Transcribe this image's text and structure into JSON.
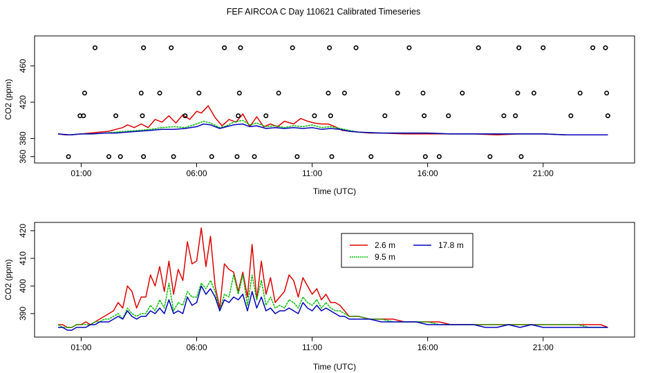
{
  "figure_title": "FEF AIRCOA C  Day 110621  Calibrated Timeseries",
  "colors": {
    "s26": "#dd0000",
    "s95": "#00bb00",
    "s178": "#0000bb",
    "axis": "#000000",
    "points": "#000000"
  },
  "chart_data": [
    {
      "type": "scatter",
      "title": "",
      "xlabel": "Time (UTC)",
      "ylabel": "CO2 (ppm)",
      "xlim": [
        0.0,
        24.0
      ],
      "ylim": [
        356,
        490
      ],
      "xticks": [
        1,
        6,
        11,
        16,
        21
      ],
      "xtick_labels": [
        "01:00",
        "06:00",
        "11:00",
        "16:00",
        "21:00"
      ],
      "yticks": [
        360,
        380,
        420,
        460
      ],
      "ytick_labels": [
        "360",
        "380",
        "420",
        "460"
      ],
      "series": [
        {
          "name": "2.6 m",
          "color_key": "s26",
          "x": [
            0.0,
            0.3,
            0.6,
            1.0,
            1.4,
            1.8,
            2.2,
            2.5,
            2.8,
            3.0,
            3.3,
            3.6,
            3.9,
            4.2,
            4.5,
            4.8,
            5.1,
            5.4,
            5.7,
            6.0,
            6.2,
            6.5,
            6.8,
            7.1,
            7.4,
            7.7,
            8.0,
            8.3,
            8.6,
            8.9,
            9.2,
            9.5,
            9.8,
            10.2,
            10.5,
            10.8,
            11.1,
            11.4,
            11.7,
            12.0,
            12.3,
            12.6,
            13.0,
            13.5,
            14,
            15,
            16,
            17,
            18,
            19,
            20,
            21,
            22,
            23,
            23.8
          ],
          "y": [
            385,
            384,
            384,
            385,
            386,
            387,
            388,
            390,
            392,
            395,
            392,
            396,
            392,
            401,
            398,
            405,
            397,
            406,
            401,
            410,
            408,
            416,
            403,
            394,
            401,
            398,
            407,
            393,
            404,
            393,
            396,
            393,
            399,
            396,
            402,
            399,
            397,
            396,
            396,
            393,
            389,
            388,
            387,
            386,
            386,
            385,
            385,
            385,
            385,
            384,
            385,
            385,
            384,
            384,
            384
          ]
        },
        {
          "name": "9.5 m",
          "color_key": "s95",
          "x": [
            0.0,
            0.5,
            1.0,
            1.5,
            2.0,
            2.5,
            3.0,
            3.5,
            4.0,
            4.5,
            5.0,
            5.5,
            6.0,
            6.3,
            6.6,
            7.0,
            7.3,
            7.6,
            8.0,
            8.3,
            8.6,
            9.0,
            9.4,
            9.8,
            10.2,
            10.6,
            11.0,
            11.4,
            11.8,
            12.2,
            12.6,
            13,
            14,
            15,
            16,
            17,
            18,
            19,
            20,
            21,
            22,
            23,
            23.8
          ],
          "y": [
            385,
            384,
            385,
            385,
            386,
            387,
            388,
            389,
            390,
            392,
            393,
            392,
            396,
            399,
            397,
            392,
            394,
            398,
            400,
            395,
            397,
            393,
            394,
            392,
            394,
            393,
            395,
            392,
            393,
            391,
            389,
            387,
            386,
            386,
            386,
            385,
            385,
            385,
            385,
            385,
            384,
            384,
            384
          ]
        },
        {
          "name": "17.8 m",
          "color_key": "s178",
          "x": [
            0.0,
            0.5,
            1.0,
            1.5,
            2.0,
            2.5,
            3.0,
            3.5,
            4.0,
            4.5,
            5.0,
            5.5,
            6.0,
            6.3,
            6.6,
            7.0,
            7.3,
            7.6,
            8.0,
            8.3,
            8.6,
            9.0,
            9.4,
            9.8,
            10.2,
            10.6,
            11.0,
            11.4,
            11.8,
            12.2,
            12.6,
            13,
            14,
            15,
            16,
            17,
            18,
            19,
            20,
            21,
            22,
            23,
            23.8
          ],
          "y": [
            385,
            384,
            385,
            385,
            386,
            386,
            387,
            388,
            389,
            390,
            390,
            391,
            393,
            396,
            395,
            391,
            393,
            395,
            396,
            393,
            394,
            391,
            392,
            391,
            392,
            391,
            392,
            390,
            391,
            390,
            388,
            387,
            386,
            386,
            386,
            385,
            385,
            385,
            385,
            385,
            384,
            384,
            384
          ]
        },
        {
          "name": "points",
          "color_key": "points",
          "x": [
            0.45,
            0.95,
            1.1,
            1.15,
            1.6,
            2.2,
            2.5,
            2.7,
            3.6,
            3.65,
            3.7,
            3.7,
            4.4,
            4.9,
            5.0,
            5.5,
            6.1,
            6.65,
            7.2,
            7.75,
            7.8,
            7.85,
            7.9,
            8.5,
            9.0,
            9.55,
            10.15,
            10.35,
            11.1,
            11.7,
            11.75,
            11.8,
            11.85,
            12.4,
            12.9,
            13.55,
            14.15,
            14.7,
            15.2,
            15.8,
            15.85,
            15.9,
            16.5,
            16.9,
            17.5,
            18.2,
            18.7,
            19.3,
            19.8,
            19.9,
            19.95,
            20.05,
            20.6,
            21.0,
            22.2,
            22.6,
            23.15,
            23.7,
            23.75,
            23.8
          ],
          "y": [
            360,
            405,
            405,
            430,
            480,
            360,
            405,
            360,
            430,
            405,
            480,
            360,
            430,
            480,
            360,
            405,
            430,
            360,
            480,
            360,
            405,
            430,
            480,
            360,
            405,
            430,
            480,
            360,
            405,
            430,
            480,
            405,
            360,
            430,
            480,
            360,
            405,
            430,
            480,
            430,
            405,
            360,
            360,
            405,
            430,
            480,
            360,
            405,
            405,
            430,
            480,
            360,
            430,
            480,
            405,
            430,
            480,
            480,
            430,
            405
          ]
        }
      ]
    },
    {
      "type": "line",
      "title": "",
      "xlabel": "Time (UTC)",
      "ylabel": "CO2 (ppm)",
      "xlim": [
        0.0,
        24.0
      ],
      "ylim": [
        382.5,
        422.0
      ],
      "xticks": [
        1,
        6,
        11,
        16,
        21
      ],
      "xtick_labels": [
        "01:00",
        "06:00",
        "11:00",
        "16:00",
        "21:00"
      ],
      "yticks": [
        390,
        400,
        410,
        420
      ],
      "ytick_labels": [
        "390",
        "400",
        "410",
        "420"
      ],
      "legend": {
        "position": "top-right",
        "entries": [
          "2.6 m",
          "17.8 m",
          "9.5 m"
        ]
      },
      "series": [
        {
          "name": "2.6 m",
          "color_key": "s26",
          "x": [
            0.0,
            0.2,
            0.4,
            0.6,
            0.8,
            1.0,
            1.2,
            1.4,
            1.6,
            1.8,
            2.0,
            2.2,
            2.4,
            2.6,
            2.8,
            3.0,
            3.2,
            3.4,
            3.6,
            3.8,
            4.0,
            4.2,
            4.4,
            4.6,
            4.8,
            5.0,
            5.2,
            5.4,
            5.6,
            5.8,
            6.0,
            6.2,
            6.4,
            6.6,
            6.8,
            7.0,
            7.2,
            7.4,
            7.6,
            7.8,
            8.0,
            8.2,
            8.4,
            8.6,
            8.8,
            9.0,
            9.2,
            9.4,
            9.6,
            9.8,
            10.0,
            10.2,
            10.4,
            10.6,
            10.8,
            11.0,
            11.2,
            11.4,
            11.6,
            11.8,
            12.0,
            12.2,
            12.4,
            12.6,
            12.8,
            13.0,
            13.5,
            14.0,
            14.5,
            15.0,
            15.5,
            16.0,
            16.5,
            17.0,
            17.5,
            18.0,
            18.5,
            19.0,
            19.5,
            20.0,
            20.5,
            21.0,
            21.5,
            22.0,
            22.5,
            23.0,
            23.5,
            23.8
          ],
          "y": [
            386,
            386,
            385,
            385,
            386,
            386,
            387,
            386,
            387,
            388,
            389,
            390,
            391,
            394,
            392,
            400,
            398,
            392,
            396,
            396,
            404,
            400,
            407,
            398,
            409,
            397,
            406,
            402,
            416,
            408,
            409,
            421,
            407,
            418,
            400,
            392,
            408,
            406,
            405,
            398,
            405,
            396,
            415,
            395,
            409,
            397,
            403,
            394,
            396,
            398,
            404,
            402,
            396,
            403,
            400,
            397,
            399,
            395,
            397,
            394,
            394,
            393,
            391,
            389,
            389,
            389,
            388,
            388,
            388,
            387,
            387,
            387,
            387,
            386,
            386,
            386,
            386,
            386,
            386,
            386,
            386,
            386,
            386,
            386,
            386,
            386,
            386,
            385
          ]
        },
        {
          "name": "9.5 m",
          "color_key": "s95",
          "x": [
            0.0,
            0.2,
            0.4,
            0.6,
            0.8,
            1.0,
            1.2,
            1.4,
            1.6,
            1.8,
            2.0,
            2.2,
            2.4,
            2.6,
            2.8,
            3.0,
            3.2,
            3.4,
            3.6,
            3.8,
            4.0,
            4.2,
            4.4,
            4.6,
            4.8,
            5.0,
            5.2,
            5.4,
            5.6,
            5.8,
            6.0,
            6.2,
            6.4,
            6.6,
            6.8,
            7.0,
            7.2,
            7.4,
            7.6,
            7.8,
            8.0,
            8.2,
            8.4,
            8.6,
            8.8,
            9.0,
            9.2,
            9.4,
            9.6,
            9.8,
            10.0,
            10.2,
            10.4,
            10.6,
            10.8,
            11.0,
            11.2,
            11.4,
            11.6,
            11.8,
            12.0,
            12.2,
            12.4,
            12.6,
            12.8,
            13.0,
            13.5,
            14.0,
            14.5,
            15.0,
            15.5,
            16.0,
            16.5,
            17.0,
            17.5,
            18.0,
            18.5,
            19.0,
            19.5,
            20.0,
            20.5,
            21.0,
            21.5,
            22.0,
            22.5,
            23.0,
            23.5,
            23.8
          ],
          "y": [
            386,
            385,
            385,
            385,
            386,
            386,
            386,
            386,
            387,
            387,
            388,
            388,
            389,
            390,
            388,
            392,
            390,
            389,
            390,
            390,
            393,
            391,
            395,
            392,
            401,
            391,
            394,
            393,
            398,
            396,
            396,
            401,
            399,
            402,
            398,
            391,
            397,
            396,
            404,
            397,
            404,
            393,
            404,
            395,
            402,
            393,
            396,
            392,
            393,
            392,
            395,
            394,
            392,
            396,
            394,
            393,
            395,
            392,
            394,
            392,
            391,
            391,
            390,
            389,
            389,
            389,
            388,
            388,
            387,
            387,
            387,
            387,
            386,
            386,
            386,
            386,
            386,
            386,
            386,
            386,
            386,
            386,
            386,
            386,
            386,
            385,
            385,
            385
          ]
        },
        {
          "name": "17.8 m",
          "color_key": "s178",
          "x": [
            0.0,
            0.2,
            0.4,
            0.6,
            0.8,
            1.0,
            1.2,
            1.4,
            1.6,
            1.8,
            2.0,
            2.2,
            2.4,
            2.6,
            2.8,
            3.0,
            3.2,
            3.4,
            3.6,
            3.8,
            4.0,
            4.2,
            4.4,
            4.6,
            4.8,
            5.0,
            5.2,
            5.4,
            5.6,
            5.8,
            6.0,
            6.2,
            6.4,
            6.6,
            6.8,
            7.0,
            7.2,
            7.4,
            7.6,
            7.8,
            8.0,
            8.2,
            8.4,
            8.6,
            8.8,
            9.0,
            9.2,
            9.4,
            9.6,
            9.8,
            10.0,
            10.2,
            10.4,
            10.6,
            10.8,
            11.0,
            11.2,
            11.4,
            11.6,
            11.8,
            12.0,
            12.2,
            12.4,
            12.6,
            12.8,
            13.0,
            13.5,
            14.0,
            14.5,
            15.0,
            15.5,
            16.0,
            16.5,
            17.0,
            17.5,
            18.0,
            18.5,
            19.0,
            19.5,
            20.0,
            20.5,
            21.0,
            21.5,
            22.0,
            22.5,
            23.0,
            23.5,
            23.8
          ],
          "y": [
            385,
            385,
            384,
            384,
            385,
            385,
            385,
            386,
            386,
            387,
            387,
            387,
            388,
            389,
            388,
            391,
            389,
            388,
            389,
            389,
            391,
            390,
            392,
            390,
            395,
            390,
            391,
            390,
            396,
            393,
            394,
            400,
            397,
            399,
            396,
            391,
            395,
            394,
            396,
            395,
            397,
            391,
            398,
            392,
            396,
            391,
            392,
            390,
            391,
            391,
            392,
            391,
            390,
            394,
            392,
            391,
            393,
            391,
            392,
            391,
            390,
            389,
            389,
            388,
            388,
            388,
            388,
            387,
            387,
            387,
            387,
            386,
            386,
            386,
            386,
            386,
            385,
            385,
            386,
            385,
            386,
            385,
            385,
            385,
            385,
            385,
            385,
            385
          ]
        }
      ]
    }
  ]
}
